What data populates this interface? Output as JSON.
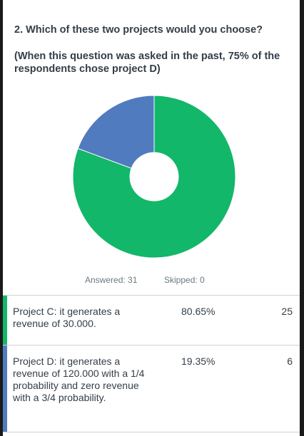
{
  "question": {
    "title": "2. Which of these two projects would you choose?",
    "note": "(When this question was asked in the past, 75% of the respondents chose project D)"
  },
  "stats": {
    "answered": "Answered: 31",
    "skipped": "Skipped: 0"
  },
  "colors": {
    "project_c": "#12b76a",
    "project_d": "#507bbf",
    "background": "#1a1a1a"
  },
  "chart_data": {
    "type": "pie",
    "style": "donut",
    "categories": [
      "Project C: it generates a revenue of 30.000.",
      "Project D: it generates a revenue of 120.000 with a 1/4 probability and zero revenue with a 3/4 probability."
    ],
    "values": [
      80.65,
      19.35
    ],
    "counts": [
      25,
      6
    ],
    "colors": [
      "#12b76a",
      "#507bbf"
    ]
  },
  "rows": [
    {
      "label": "Project C: it generates a revenue of 30.000.",
      "percent": "80.65%",
      "count": "25"
    },
    {
      "label": "Project D: it generates a revenue of 120.000 with a 1/4 probability and zero revenue with a 3/4 probability.",
      "percent": "19.35%",
      "count": "6"
    }
  ]
}
